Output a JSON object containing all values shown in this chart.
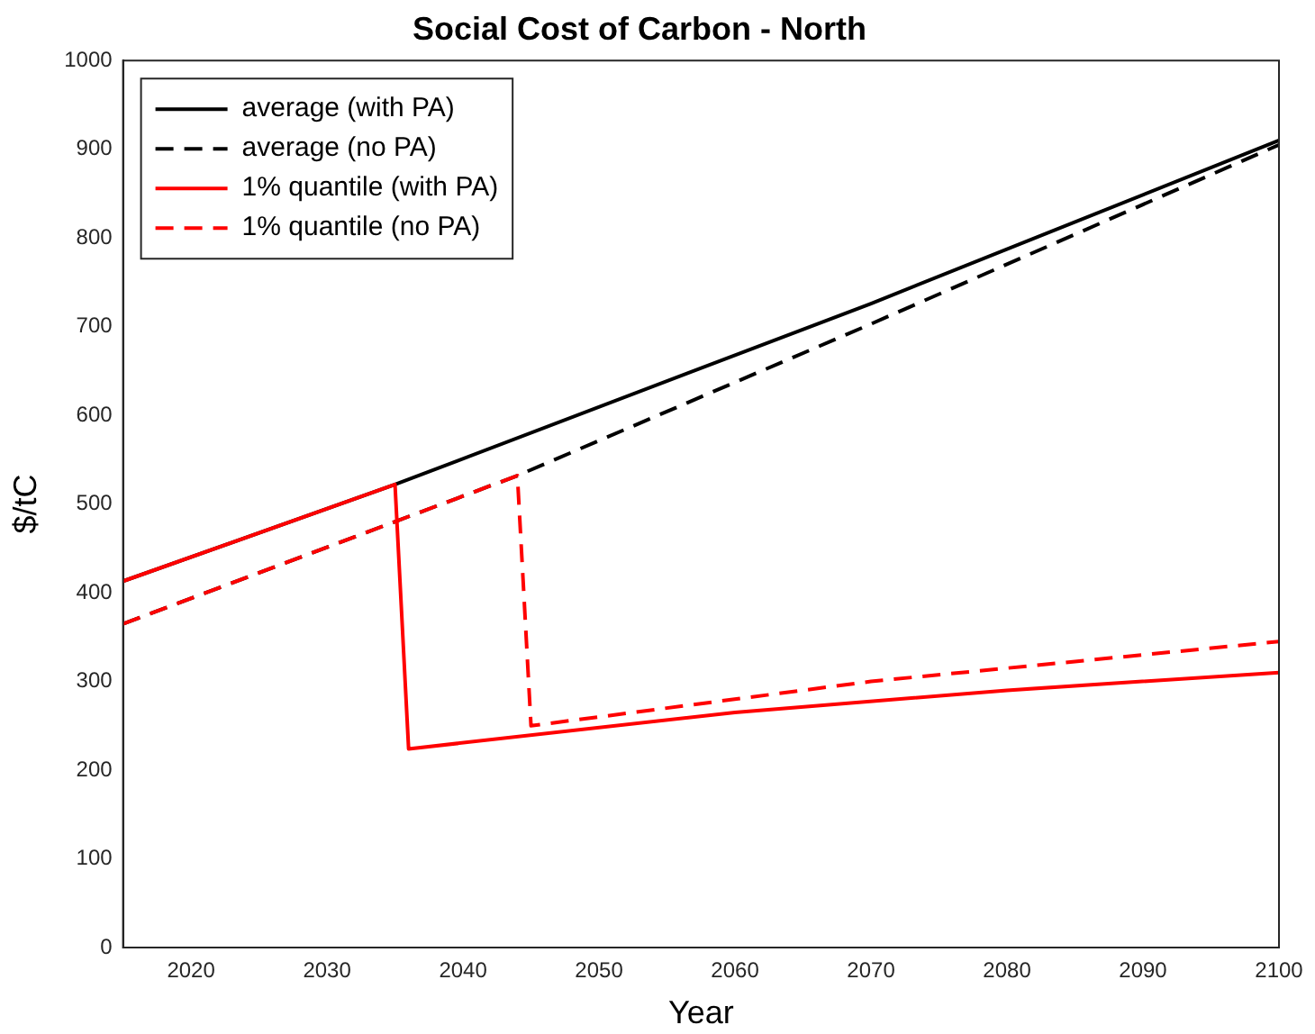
{
  "chart_data": {
    "type": "line",
    "title": "Social Cost of Carbon - North",
    "xlabel": "Year",
    "ylabel": "$/tC",
    "xlim": [
      2015,
      2100
    ],
    "xticks": [
      2020,
      2030,
      2040,
      2050,
      2060,
      2070,
      2080,
      2090,
      2100
    ],
    "ylim": [
      0,
      1000
    ],
    "yticks": [
      0,
      100,
      200,
      300,
      400,
      500,
      600,
      700,
      800,
      900,
      1000
    ],
    "grid": false,
    "legend": "top left",
    "marker": "none",
    "series": [
      {
        "name": "average (with PA)",
        "color": "#000000",
        "line_style": "solid",
        "x": [
          2015,
          2035,
          2070,
          2100
        ],
        "values": [
          413,
          522,
          726,
          910
        ]
      },
      {
        "name": "average (no PA)",
        "color": "#000000",
        "line_style": "dashed",
        "x": [
          2015,
          2044,
          2070,
          2100
        ],
        "values": [
          365,
          532,
          703,
          905
        ]
      },
      {
        "name": "1% quantile (with PA)",
        "color": "#ff0000",
        "line_style": "solid",
        "x": [
          2015,
          2035,
          2036,
          2060,
          2080,
          2100
        ],
        "values": [
          413,
          522,
          224,
          265,
          290,
          310
        ]
      },
      {
        "name": "1% quantile (no PA)",
        "color": "#ff0000",
        "line_style": "dashed",
        "x": [
          2015,
          2044,
          2045,
          2070,
          2100
        ],
        "values": [
          365,
          532,
          250,
          300,
          345
        ]
      }
    ]
  }
}
